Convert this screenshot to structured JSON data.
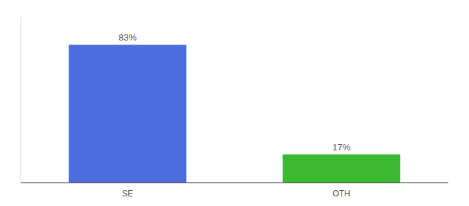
{
  "chart_data": {
    "type": "bar",
    "categories": [
      "SE",
      "OTH"
    ],
    "values": [
      83,
      17
    ],
    "value_labels": [
      "83%",
      "17%"
    ],
    "colors": [
      "#4a6edb",
      "#3cb832"
    ],
    "ylim": [
      0,
      100
    ],
    "data_labels": true,
    "tick_labels": "x",
    "grid": false
  }
}
